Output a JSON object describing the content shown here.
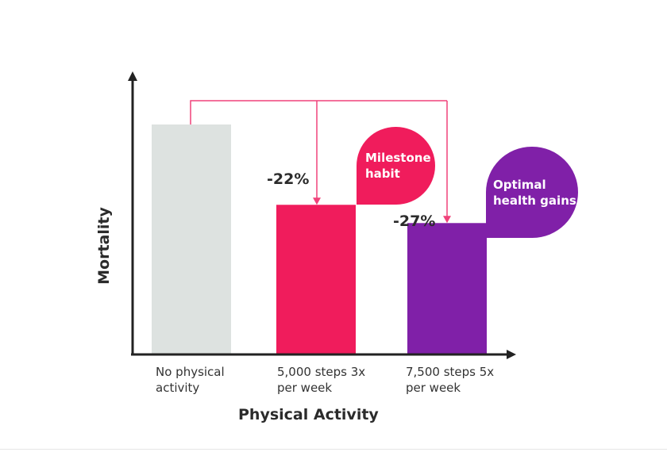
{
  "chart_data": {
    "type": "bar",
    "title": "",
    "xlabel": "Physical Activity",
    "ylabel": "Mortality",
    "categories": [
      "No physical activity",
      "5,000 steps 3x per week",
      "7,500 steps 5x per week"
    ],
    "category_lines": [
      [
        "No physical",
        "activity"
      ],
      [
        "5,000 steps 3x",
        "per week"
      ],
      [
        "7,500 steps 5x",
        "per week"
      ]
    ],
    "values": [
      100,
      78,
      73
    ],
    "ylim": [
      37,
      100
    ],
    "data_labels": [
      "",
      "-22%",
      "-27%"
    ],
    "annotations": [
      {
        "lines": [
          "Milestone",
          "habit"
        ],
        "color": "#f01c5c"
      },
      {
        "lines": [
          "Optimal",
          "health gains"
        ],
        "color": "#8020a8"
      }
    ],
    "bar_colors": [
      "#dde2e0",
      "#f01c5c",
      "#8020a8"
    ],
    "connector_color": "#f0427a",
    "axis_color": "#222222",
    "grid": false,
    "legend": "none"
  }
}
